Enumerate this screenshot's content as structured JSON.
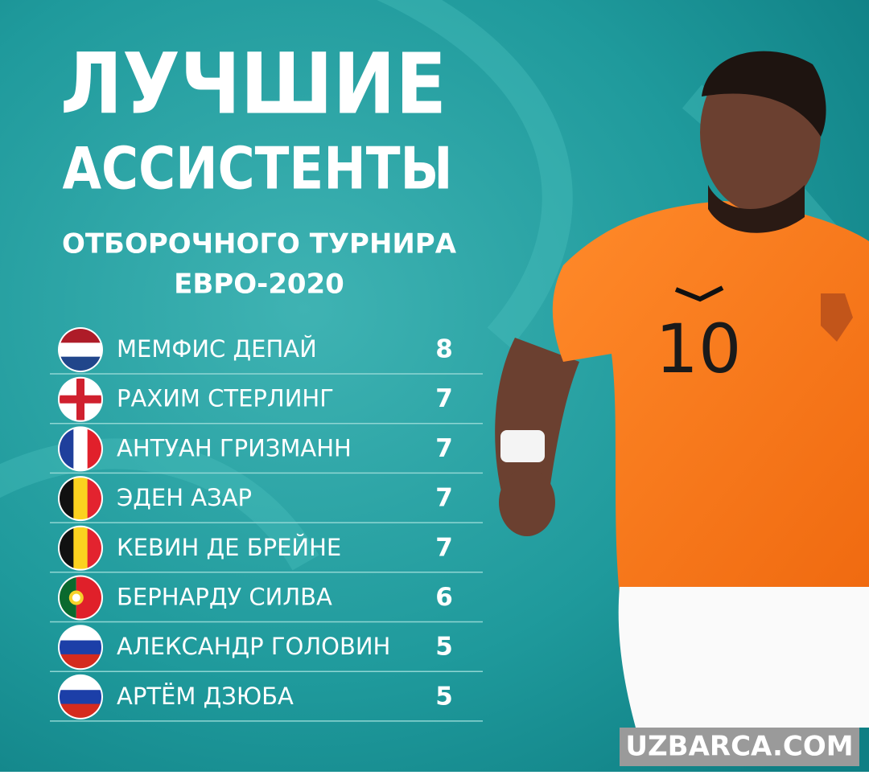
{
  "header": {
    "title_line1": "ЛУЧШИЕ",
    "title_line2": "АССИСТЕНТЫ",
    "subtitle_line1": "ОТБОРОЧНОГО ТУРНИРА",
    "subtitle_line2": "ЕВРО-2020"
  },
  "table": {
    "rows": [
      {
        "name": "МЕМФИС ДЕПАЙ",
        "assists": 8
      },
      {
        "name": "РАХИМ СТЕРЛИНГ",
        "assists": 7
      },
      {
        "name": "АНТУАН ГРИЗМАНН",
        "assists": 7
      },
      {
        "name": "ЭДЕН АЗАР",
        "assists": 7
      },
      {
        "name": "КЕВИН ДЕ БРЕЙНЕ",
        "assists": 7
      },
      {
        "name": "БЕРНАРДУ СИЛВА",
        "assists": 6
      },
      {
        "name": "АЛЕКСАНДР ГОЛОВИН",
        "assists": 5
      },
      {
        "name": "АРТЁМ ДЗЮБА",
        "assists": 5
      }
    ]
  },
  "photo": {
    "jersey_number": "10"
  },
  "watermark": "UZBARCA.COM"
}
